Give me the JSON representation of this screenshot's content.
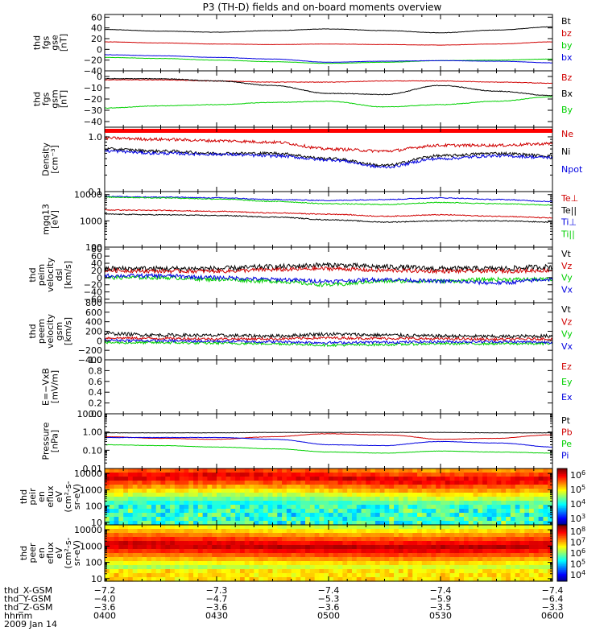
{
  "title": "P3 (TH-D) fields and on-board moments overview",
  "date": "2009 Jan 14",
  "colors": {
    "black": "#000000",
    "red": "#d00000",
    "green": "#00d000",
    "blue": "#0000e0"
  },
  "panels": [
    {
      "id": "fgs-gse",
      "ylabel": [
        "thd",
        "fgs",
        "gse",
        "[nT]"
      ],
      "scale": "linear",
      "ylim": [
        -40,
        65
      ],
      "ticks": [
        {
          "v": 60,
          "t": "60"
        },
        {
          "v": 40,
          "t": "40"
        },
        {
          "v": 20,
          "t": "20"
        },
        {
          "v": 0,
          "t": "0"
        },
        {
          "v": -20,
          "t": "−20"
        },
        {
          "v": -40,
          "t": "−40"
        }
      ],
      "legend": [
        {
          "t": "Bt",
          "c": "black"
        },
        {
          "t": "bz",
          "c": "red"
        },
        {
          "t": "by",
          "c": "green"
        },
        {
          "t": "bx",
          "c": "blue"
        }
      ]
    },
    {
      "id": "fgs-gsm",
      "ylabel": [
        "thd",
        "fgs",
        "gsm",
        "[nT]"
      ],
      "scale": "linear",
      "ylim": [
        -45,
        5
      ],
      "ticks": [
        {
          "v": 0,
          "t": "0"
        },
        {
          "v": -10,
          "t": "−10"
        },
        {
          "v": -20,
          "t": "−20"
        },
        {
          "v": -30,
          "t": "−30"
        },
        {
          "v": -40,
          "t": "−40"
        }
      ],
      "legend": [
        {
          "t": "Bz",
          "c": "red"
        },
        {
          "t": "Bx",
          "c": "black"
        },
        {
          "t": "By",
          "c": "green"
        }
      ]
    },
    {
      "id": "density",
      "ylabel": [
        "Density",
        "[cm⁻³]"
      ],
      "scale": "log",
      "ylim": [
        0.1,
        1.5
      ],
      "ticks": [
        {
          "v": 1.0,
          "t": "1.0"
        },
        {
          "v": 0.1,
          "t": "0.1"
        }
      ],
      "legend": [
        {
          "t": "Ne",
          "c": "red"
        },
        {
          "t": "Ni",
          "c": "black"
        },
        {
          "t": "Npot",
          "c": "blue"
        }
      ]
    },
    {
      "id": "temp",
      "ylabel": [
        "mgq13",
        "[eV]"
      ],
      "scale": "log",
      "ylim": [
        100,
        13000
      ],
      "ticks": [
        {
          "v": 10000,
          "t": "10000"
        },
        {
          "v": 1000,
          "t": "1000"
        },
        {
          "v": 100,
          "t": "100"
        }
      ],
      "legend": [
        {
          "t": "Te⊥",
          "c": "red"
        },
        {
          "t": "Te||",
          "c": "black"
        },
        {
          "t": "Ti⊥",
          "c": "blue"
        },
        {
          "t": "Ti||",
          "c": "green"
        }
      ]
    },
    {
      "id": "vel-dsl",
      "ylabel": [
        "thd",
        "peim",
        "velocity",
        "dsl",
        "[km/s]"
      ],
      "scale": "linear",
      "ylim": [
        -70,
        85
      ],
      "ticks": [
        {
          "v": 80,
          "t": "80"
        },
        {
          "v": 60,
          "t": "60"
        },
        {
          "v": 40,
          "t": "40"
        },
        {
          "v": 20,
          "t": "20"
        },
        {
          "v": 0,
          "t": "0"
        },
        {
          "v": -20,
          "t": "−20"
        },
        {
          "v": -40,
          "t": "−40"
        },
        {
          "v": -60,
          "t": "−60"
        }
      ],
      "legend": [
        {
          "t": "Vt",
          "c": "black"
        },
        {
          "t": "Vz",
          "c": "red"
        },
        {
          "t": "Vy",
          "c": "green"
        },
        {
          "t": "Vx",
          "c": "blue"
        }
      ]
    },
    {
      "id": "vel-gsm",
      "ylabel": [
        "thd",
        "peem",
        "velocity",
        "gsm",
        "[km/s]"
      ],
      "scale": "linear",
      "ylim": [
        -400,
        800
      ],
      "ticks": [
        {
          "v": 800,
          "t": "800"
        },
        {
          "v": 600,
          "t": "600"
        },
        {
          "v": 400,
          "t": "400"
        },
        {
          "v": 200,
          "t": "200"
        },
        {
          "v": 0,
          "t": "0"
        },
        {
          "v": -200,
          "t": "−200"
        },
        {
          "v": -400,
          "t": "−400"
        }
      ],
      "legend": [
        {
          "t": "Vt",
          "c": "black"
        },
        {
          "t": "Vz",
          "c": "red"
        },
        {
          "t": "Vy",
          "c": "green"
        },
        {
          "t": "Vx",
          "c": "blue"
        }
      ]
    },
    {
      "id": "efield",
      "ylabel": [
        "E=−VxB",
        "[mV/m]"
      ],
      "scale": "linear",
      "ylim": [
        0,
        1
      ],
      "ticks": [
        {
          "v": 1.0,
          "t": "1.0"
        },
        {
          "v": 0.8,
          "t": "0.8"
        },
        {
          "v": 0.6,
          "t": "0.6"
        },
        {
          "v": 0.4,
          "t": "0.4"
        },
        {
          "v": 0.2,
          "t": "0.2"
        },
        {
          "v": 0.0,
          "t": "0.0"
        }
      ],
      "legend": [
        {
          "t": "Ez",
          "c": "red"
        },
        {
          "t": "Ey",
          "c": "green"
        },
        {
          "t": "Ex",
          "c": "blue"
        }
      ]
    },
    {
      "id": "pressure",
      "ylabel": [
        "Pressure",
        "[nPa]"
      ],
      "scale": "log",
      "ylim": [
        0.01,
        10
      ],
      "ticks": [
        {
          "v": 10,
          "t": "10.00"
        },
        {
          "v": 1,
          "t": "1.00"
        },
        {
          "v": 0.1,
          "t": "0.10"
        },
        {
          "v": 0.01,
          "t": "0.01"
        }
      ],
      "legend": [
        {
          "t": "Pt",
          "c": "black"
        },
        {
          "t": "Pb",
          "c": "red"
        },
        {
          "t": "Pe",
          "c": "green"
        },
        {
          "t": "Pi",
          "c": "blue"
        }
      ]
    },
    {
      "id": "ion-spec",
      "ylabel": [
        "thd",
        "peir",
        "en",
        "eflux",
        "eV",
        "(cm²-s-",
        "sr-eV)"
      ],
      "scale": "log",
      "ylim": [
        7,
        20000
      ],
      "ticks": [
        {
          "v": 10000,
          "t": "10000"
        },
        {
          "v": 1000,
          "t": "1000"
        },
        {
          "v": 100,
          "t": "100"
        },
        {
          "v": 10,
          "t": "10"
        }
      ],
      "colorbar": [
        {
          "t": "10",
          "e": "6"
        },
        {
          "t": "10",
          "e": "5"
        },
        {
          "t": "10",
          "e": "4"
        },
        {
          "t": "10",
          "e": "3"
        }
      ]
    },
    {
      "id": "ele-spec",
      "ylabel": [
        "thd",
        "peer",
        "en",
        "eflux",
        "eV",
        "(cm²-s-",
        "sr-eV)"
      ],
      "scale": "log",
      "ylim": [
        7,
        20000
      ],
      "ticks": [
        {
          "v": 10000,
          "t": "10000"
        },
        {
          "v": 1000,
          "t": "1000"
        },
        {
          "v": 100,
          "t": "100"
        },
        {
          "v": 10,
          "t": "10"
        }
      ],
      "colorbar": [
        {
          "t": "10",
          "e": "8"
        },
        {
          "t": "10",
          "e": "7"
        },
        {
          "t": "10",
          "e": "6"
        },
        {
          "t": "10",
          "e": "5"
        },
        {
          "t": "10",
          "e": "4"
        }
      ]
    }
  ],
  "xaxis": {
    "rows": [
      {
        "label": "thd_X-GSM",
        "values": [
          "−7.2",
          "−7.3",
          "−7.4",
          "−7.4",
          "−7.4"
        ]
      },
      {
        "label": "thd_Y-GSM",
        "values": [
          "−4.0",
          "−4.7",
          "−5.3",
          "−5.9",
          "−6.4"
        ]
      },
      {
        "label": "thd_Z-GSM",
        "values": [
          "−3.6",
          "−3.6",
          "−3.6",
          "−3.5",
          "−3.3"
        ]
      },
      {
        "label": "hhmm",
        "values": [
          "0400",
          "0430",
          "0500",
          "0530",
          "0600"
        ]
      }
    ]
  },
  "chart_data": {
    "type": "line",
    "title": "P3 (TH-D) fields and on-board moments overview",
    "x": [
      "0400",
      "0415",
      "0430",
      "0445",
      "0500",
      "0515",
      "0530",
      "0545",
      "0600"
    ],
    "xlabel": "hhmm",
    "date": "2009 Jan 14",
    "panels": [
      {
        "panel": "fgs-gse",
        "ylim": [
          -40,
          65
        ],
        "series": [
          {
            "name": "Bt",
            "color": "black",
            "values": [
              37,
              34,
              32,
              35,
              38,
              35,
              31,
              36,
              42
            ]
          },
          {
            "name": "bz",
            "color": "red",
            "values": [
              14,
              12,
              10,
              9,
              10,
              9,
              8,
              10,
              14
            ]
          },
          {
            "name": "by",
            "color": "green",
            "values": [
              -15,
              -17,
              -20,
              -23,
              -26,
              -24,
              -21,
              -20,
              -18
            ]
          },
          {
            "name": "bx",
            "color": "blue",
            "values": [
              -10,
              -12,
              -15,
              -18,
              -24,
              -22,
              -21,
              -22,
              -25
            ]
          }
        ]
      },
      {
        "panel": "fgs-gsm",
        "ylim": [
          -45,
          5
        ],
        "series": [
          {
            "name": "Bz",
            "color": "red",
            "values": [
              -3,
              -3,
              -4,
              -5,
              -5,
              -4,
              -4,
              -5,
              -6
            ]
          },
          {
            "name": "Bx",
            "color": "black",
            "values": [
              -2,
              -2,
              -4,
              -8,
              -15,
              -16,
              -8,
              -13,
              -17
            ]
          },
          {
            "name": "By",
            "color": "green",
            "values": [
              -28,
              -26,
              -25,
              -23,
              -22,
              -27,
              -25,
              -22,
              -18
            ]
          }
        ]
      },
      {
        "panel": "density",
        "ylim": [
          0.1,
          1.5
        ],
        "series": [
          {
            "name": "Ne",
            "color": "red",
            "values": [
              0.95,
              0.9,
              0.85,
              0.8,
              0.6,
              0.55,
              0.7,
              0.7,
              0.75
            ]
          },
          {
            "name": "Ni",
            "color": "black",
            "values": [
              0.6,
              0.55,
              0.5,
              0.5,
              0.4,
              0.3,
              0.45,
              0.5,
              0.45
            ]
          },
          {
            "name": "Npot",
            "color": "blue",
            "values": [
              0.55,
              0.5,
              0.48,
              0.45,
              0.38,
              0.28,
              0.4,
              0.45,
              0.42
            ]
          }
        ]
      },
      {
        "panel": "temp",
        "ylim": [
          100,
          13000
        ],
        "series": [
          {
            "name": "Te⊥",
            "color": "red",
            "values": [
              2600,
              2500,
              2300,
              2000,
              1800,
              1500,
              1700,
              1500,
              1300
            ]
          },
          {
            "name": "Te||",
            "color": "black",
            "values": [
              1800,
              1700,
              1600,
              1400,
              1100,
              900,
              1000,
              1000,
              900
            ]
          },
          {
            "name": "Ti⊥",
            "color": "blue",
            "values": [
              8500,
              8000,
              7500,
              6500,
              6000,
              6500,
              7500,
              6500,
              5500
            ]
          },
          {
            "name": "Ti||",
            "color": "green",
            "values": [
              8000,
              7500,
              6800,
              5500,
              4500,
              4200,
              5000,
              4500,
              4000
            ]
          }
        ]
      },
      {
        "panel": "vel-dsl",
        "ylim": [
          -70,
          85
        ],
        "series": [
          {
            "name": "Vt",
            "color": "black",
            "values": [
              25,
              25,
              25,
              30,
              35,
              30,
              25,
              25,
              30
            ]
          },
          {
            "name": "Vz",
            "color": "red",
            "values": [
              20,
              18,
              18,
              22,
              25,
              20,
              18,
              18,
              20
            ]
          },
          {
            "name": "Vy",
            "color": "green",
            "values": [
              0,
              0,
              -5,
              -10,
              -20,
              -10,
              -10,
              -5,
              -5
            ]
          },
          {
            "name": "Vx",
            "color": "blue",
            "values": [
              5,
              5,
              0,
              -5,
              -10,
              -5,
              -10,
              -15,
              -5
            ]
          }
        ]
      },
      {
        "panel": "vel-gsm",
        "ylim": [
          -400,
          800
        ],
        "series": [
          {
            "name": "Vt",
            "color": "black",
            "values": [
              150,
              120,
              110,
              100,
              140,
              120,
              100,
              90,
              100
            ]
          },
          {
            "name": "Vz",
            "color": "red",
            "values": [
              60,
              50,
              40,
              40,
              60,
              50,
              40,
              30,
              40
            ]
          },
          {
            "name": "Vy",
            "color": "green",
            "values": [
              -40,
              -40,
              -50,
              -60,
              -90,
              -80,
              -60,
              -60,
              -60
            ]
          },
          {
            "name": "Vx",
            "color": "blue",
            "values": [
              10,
              0,
              -10,
              -20,
              -40,
              -30,
              -20,
              -20,
              -30
            ]
          }
        ]
      },
      {
        "panel": "efield",
        "ylim": [
          0,
          1
        ],
        "series": [
          {
            "name": "Ez",
            "color": "red",
            "values": []
          },
          {
            "name": "Ey",
            "color": "green",
            "values": []
          },
          {
            "name": "Ex",
            "color": "blue",
            "values": []
          }
        ]
      },
      {
        "panel": "pressure",
        "ylim": [
          0.01,
          10
        ],
        "series": [
          {
            "name": "Pt",
            "color": "black",
            "values": [
              0.9,
              0.9,
              0.9,
              0.95,
              0.95,
              0.95,
              0.95,
              0.9,
              0.9
            ]
          },
          {
            "name": "Pb",
            "color": "red",
            "values": [
              0.55,
              0.45,
              0.4,
              0.55,
              0.8,
              0.7,
              0.4,
              0.45,
              0.7
            ]
          },
          {
            "name": "Pe",
            "color": "green",
            "values": [
              0.2,
              0.18,
              0.15,
              0.12,
              0.08,
              0.07,
              0.09,
              0.08,
              0.07
            ]
          },
          {
            "name": "Pi",
            "color": "blue",
            "values": [
              0.5,
              0.5,
              0.5,
              0.4,
              0.2,
              0.18,
              0.3,
              0.25,
              0.15
            ]
          }
        ]
      }
    ]
  }
}
